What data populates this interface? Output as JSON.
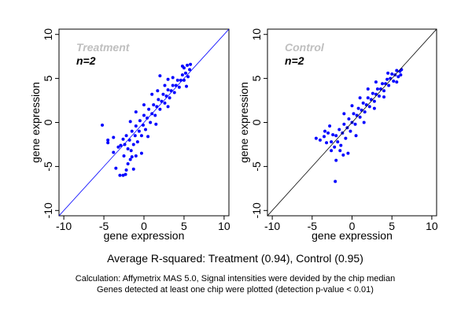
{
  "chart_data": [
    {
      "type": "scatter",
      "title": "Treatment",
      "subtitle": "n=2",
      "xlabel": "gene expression",
      "ylabel": "gene expression",
      "xlim": [
        -10.6,
        10.6
      ],
      "ylim": [
        -10.6,
        10.6
      ],
      "xticks": [
        "-10",
        "-5",
        "0",
        "5",
        "10"
      ],
      "yticks": [
        "-10",
        "-5",
        "0",
        "5",
        "10"
      ],
      "reference_line": "y = x",
      "point_color": "#0000ff",
      "line_color": "#0000ff",
      "title_color": "#bfbfbf",
      "points": [
        [
          -5.2,
          -0.3
        ],
        [
          -4.5,
          -2.0
        ],
        [
          -4.5,
          -2.3
        ],
        [
          -3.8,
          -1.7
        ],
        [
          -3.8,
          -3.4
        ],
        [
          -3.5,
          -5.2
        ],
        [
          -3.0,
          -6.0
        ],
        [
          -2.6,
          -6.0
        ],
        [
          -2.3,
          -5.9
        ],
        [
          -2.2,
          -5.4
        ],
        [
          -1.3,
          -5.3
        ],
        [
          -2.0,
          -4.7
        ],
        [
          -3.2,
          -2.8
        ],
        [
          -2.9,
          -2.6
        ],
        [
          -2.6,
          -1.9
        ],
        [
          -1.7,
          -4.2
        ],
        [
          -0.3,
          -3.5
        ],
        [
          -1.0,
          -3.8
        ],
        [
          -2.4,
          -2.5
        ],
        [
          -2.2,
          -1.5
        ],
        [
          -2.0,
          -3.0
        ],
        [
          -1.8,
          -2.0
        ],
        [
          -1.6,
          -3.2
        ],
        [
          -1.5,
          -1.0
        ],
        [
          -1.3,
          -2.5
        ],
        [
          -1.1,
          -1.5
        ],
        [
          -1.0,
          -0.4
        ],
        [
          -0.8,
          -2.2
        ],
        [
          -0.6,
          -1.0
        ],
        [
          -0.5,
          0.2
        ],
        [
          -0.3,
          -1.5
        ],
        [
          -0.1,
          -0.3
        ],
        [
          0.0,
          0.8
        ],
        [
          0.2,
          -0.8
        ],
        [
          0.4,
          0.5
        ],
        [
          0.6,
          1.5
        ],
        [
          0.8,
          0.0
        ],
        [
          1.0,
          1.0
        ],
        [
          1.2,
          2.0
        ],
        [
          1.4,
          0.8
        ],
        [
          1.6,
          1.8
        ],
        [
          1.8,
          2.6
        ],
        [
          2.0,
          1.5
        ],
        [
          2.2,
          2.4
        ],
        [
          2.4,
          3.2
        ],
        [
          2.6,
          2.2
        ],
        [
          2.8,
          3.0
        ],
        [
          3.0,
          3.7
        ],
        [
          3.2,
          2.8
        ],
        [
          3.4,
          3.6
        ],
        [
          3.6,
          4.2
        ],
        [
          3.8,
          3.4
        ],
        [
          4.0,
          4.2
        ],
        [
          4.2,
          4.8
        ],
        [
          4.4,
          4.0
        ],
        [
          4.6,
          4.8
        ],
        [
          4.8,
          5.4
        ],
        [
          5.0,
          4.8
        ],
        [
          5.0,
          6.2
        ],
        [
          5.2,
          5.6
        ],
        [
          5.4,
          6.5
        ],
        [
          5.5,
          5.2
        ],
        [
          5.7,
          6.0
        ],
        [
          5.8,
          6.6
        ],
        [
          4.8,
          6.4
        ],
        [
          5.3,
          4.1
        ],
        [
          -1.0,
          1.2
        ],
        [
          -1.7,
          0.1
        ],
        [
          0.0,
          2.0
        ],
        [
          1.0,
          3.2
        ],
        [
          2.0,
          5.3
        ],
        [
          3.0,
          4.9
        ],
        [
          3.6,
          5.1
        ],
        [
          1.7,
          3.6
        ],
        [
          2.6,
          4.2
        ],
        [
          -2.5,
          -3.8
        ],
        [
          -1.5,
          -3.9
        ],
        [
          0.5,
          -1.6
        ],
        [
          1.5,
          -0.2
        ],
        [
          3.0,
          1.8
        ]
      ]
    },
    {
      "type": "scatter",
      "title": "Control",
      "subtitle": "n=2",
      "xlabel": "gene expression",
      "ylabel": "gene expression",
      "xlim": [
        -10.6,
        10.6
      ],
      "ylim": [
        -10.6,
        10.6
      ],
      "xticks": [
        "-10",
        "-5",
        "0",
        "5",
        "10"
      ],
      "yticks": [
        "-10",
        "-5",
        "0",
        "5",
        "10"
      ],
      "reference_line": "y = x",
      "point_color": "#0000ff",
      "line_color": "#000000",
      "title_color": "#bfbfbf",
      "points": [
        [
          -4.5,
          -1.8
        ],
        [
          -4.0,
          -2.0
        ],
        [
          -3.5,
          -1.6
        ],
        [
          -3.2,
          -2.3
        ],
        [
          -3.0,
          -1.2
        ],
        [
          -2.1,
          -6.7
        ],
        [
          -1.1,
          -3.7
        ],
        [
          -2.6,
          -3.2
        ],
        [
          -2.0,
          -4.3
        ],
        [
          -0.5,
          -3.5
        ],
        [
          -3.4,
          -1.0
        ],
        [
          -2.6,
          -2.2
        ],
        [
          -2.4,
          -1.4
        ],
        [
          -2.2,
          -2.8
        ],
        [
          -2.0,
          -1.5
        ],
        [
          -1.8,
          -2.2
        ],
        [
          -1.6,
          -0.8
        ],
        [
          -1.4,
          -2.6
        ],
        [
          -1.2,
          -1.2
        ],
        [
          -1.0,
          -0.2
        ],
        [
          -0.8,
          -1.8
        ],
        [
          -0.6,
          -0.6
        ],
        [
          -0.4,
          0.4
        ],
        [
          -0.2,
          -1.0
        ],
        [
          0.0,
          0.0
        ],
        [
          0.2,
          1.0
        ],
        [
          0.4,
          -0.2
        ],
        [
          0.6,
          0.8
        ],
        [
          0.8,
          1.6
        ],
        [
          1.0,
          0.6
        ],
        [
          1.2,
          1.4
        ],
        [
          1.4,
          2.2
        ],
        [
          1.6,
          1.2
        ],
        [
          1.8,
          2.0
        ],
        [
          2.0,
          2.8
        ],
        [
          2.2,
          1.8
        ],
        [
          2.4,
          2.6
        ],
        [
          2.6,
          3.3
        ],
        [
          2.8,
          2.4
        ],
        [
          3.0,
          3.2
        ],
        [
          3.2,
          3.8
        ],
        [
          3.4,
          3.0
        ],
        [
          3.6,
          3.8
        ],
        [
          3.8,
          4.4
        ],
        [
          4.0,
          3.6
        ],
        [
          4.2,
          4.4
        ],
        [
          4.4,
          4.9
        ],
        [
          4.6,
          4.2
        ],
        [
          4.8,
          5.0
        ],
        [
          5.0,
          5.5
        ],
        [
          5.2,
          4.7
        ],
        [
          5.4,
          5.4
        ],
        [
          5.6,
          5.9
        ],
        [
          5.8,
          5.2
        ],
        [
          6.0,
          5.8
        ],
        [
          6.2,
          6.0
        ],
        [
          6.1,
          5.4
        ],
        [
          5.6,
          4.6
        ],
        [
          -1.0,
          1.0
        ],
        [
          0.0,
          1.9
        ],
        [
          1.0,
          2.8
        ],
        [
          2.0,
          3.8
        ],
        [
          3.0,
          4.6
        ],
        [
          -1.5,
          -3.2
        ],
        [
          0.5,
          -1.5
        ],
        [
          1.5,
          0.0
        ],
        [
          2.8,
          1.6
        ],
        [
          4.0,
          2.9
        ],
        [
          4.5,
          5.6
        ],
        [
          -2.8,
          -0.4
        ]
      ]
    }
  ],
  "footer": {
    "summary": "Average R-squared: Treatment (0.94), Control (0.95)",
    "note1": "Calculation: Affymetrix MAS 5.0, Signal intensities were devided by the chip median",
    "note2": "Genes detected at least one chip were plotted (detection p-value < 0.01)"
  }
}
